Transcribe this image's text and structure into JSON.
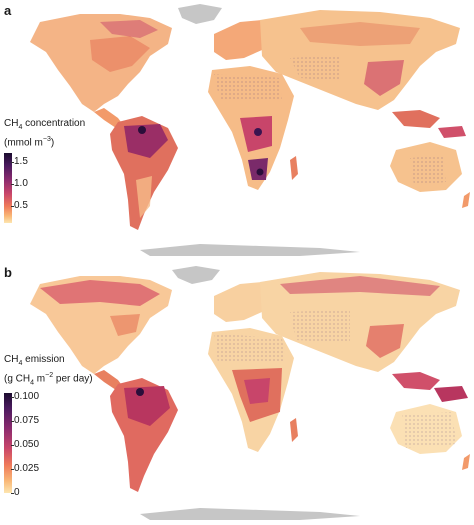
{
  "panels": [
    {
      "letter": "a",
      "legend_title_line1": "CH",
      "legend_title_sub": "4",
      "legend_title_rest": " concentration",
      "legend_title_line2": "(mmol m",
      "legend_title_sup": "−3",
      "legend_title_close": ")",
      "ticks": [
        "1.5",
        "1.0",
        "0.5"
      ],
      "tick_values": [
        1.5,
        1.0,
        0.5
      ],
      "range": [
        0.15,
        1.75
      ]
    },
    {
      "letter": "b",
      "legend_title_line1": "CH",
      "legend_title_sub": "4",
      "legend_title_rest": " emission",
      "legend_title_line2a": "(g CH",
      "legend_title_sub2": "4",
      "legend_title_line2b": " m",
      "legend_title_sup": "−2",
      "legend_title_close": " per day)",
      "ticks": [
        "0.100",
        "0.075",
        "0.050",
        "0.025",
        "0"
      ],
      "tick_values": [
        0.1,
        0.075,
        0.05,
        0.025,
        0
      ],
      "range": [
        0,
        0.104
      ]
    }
  ],
  "colors": {
    "land_low": "#fde0a8",
    "land_mid": "#f29a6a",
    "land_high": "#b8365f",
    "land_peak": "#3a1450",
    "no_data": "#c6c6c6"
  }
}
